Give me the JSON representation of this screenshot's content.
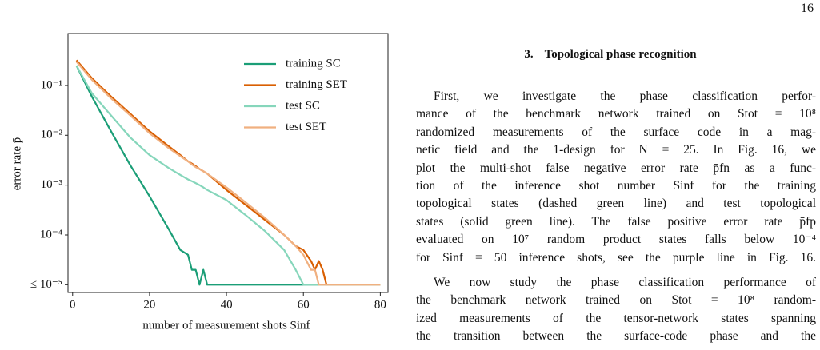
{
  "page_number": "16",
  "section": {
    "number": "3.",
    "title": "Topological phase recognition"
  },
  "paragraphs": [
    [
      "First, we investigate the phase classification perfor-",
      "mance of the benchmark network trained on Stot = 10⁸",
      "randomized measurements of the surface code in a mag-",
      "netic field and the 1-design for N = 25. In Fig. 16, we",
      "plot the multi-shot false negative error rate p̄fn as a func-",
      "tion of the inference shot number Sinf for the training",
      "topological states (dashed green line) and test topological",
      "states (solid green line). The false positive error rate p̄fp",
      "evaluated on 10⁷ random product states falls below 10⁻⁴",
      "for Sinf = 50 inference shots, see the purple line in Fig. 16."
    ],
    [
      "We now study the phase classification performance of",
      "the benchmark network trained on Stot = 10⁸ random-",
      "ized measurements of the tensor-network states spanning",
      "the transition between the surface-code phase and the"
    ]
  ],
  "chart_data": {
    "type": "line",
    "x_label": "number of measurement shots Sinf",
    "y_label": "error rate p̄",
    "x": [
      1,
      5,
      10,
      15,
      20,
      25,
      28,
      30,
      31,
      32,
      33,
      34,
      35,
      40,
      45,
      50,
      55,
      58,
      60,
      62,
      63,
      64,
      65,
      66,
      70,
      80
    ],
    "xlim": [
      -1.2,
      82
    ],
    "xticks": [
      0,
      20,
      40,
      60,
      80
    ],
    "ylim": [
      7e-06,
      1.1
    ],
    "log_y": true,
    "yticks": [
      {
        "value": 0.1,
        "label": "10⁻¹"
      },
      {
        "value": 0.01,
        "label": "10⁻²"
      },
      {
        "value": 0.001,
        "label": "10⁻³"
      },
      {
        "value": 0.0001,
        "label": "10⁻⁴"
      },
      {
        "value": 1e-05,
        "label": "≤ 10⁻⁵"
      }
    ],
    "legend": "upper right",
    "series": [
      {
        "name": "training SC",
        "color": "#1b9e77",
        "values": [
          0.25,
          0.06,
          0.012,
          0.0025,
          0.0006,
          0.00013,
          5e-05,
          4e-05,
          2e-05,
          2e-05,
          1e-05,
          2e-05,
          1e-05,
          1e-05,
          1e-05,
          1e-05,
          1e-05,
          1e-05,
          1e-05,
          1e-05,
          1e-05,
          1e-05,
          1e-05,
          1e-05,
          1e-05,
          1e-05
        ]
      },
      {
        "name": "training SET",
        "color": "#d95f02",
        "values": [
          0.32,
          0.14,
          0.06,
          0.027,
          0.012,
          0.006,
          0.004,
          0.003,
          0.0027,
          0.0024,
          0.0021,
          0.0019,
          0.0017,
          0.0008,
          0.0004,
          0.0002,
          0.0001,
          6e-05,
          5e-05,
          3e-05,
          2e-05,
          3e-05,
          2e-05,
          1e-05,
          1e-05,
          1e-05
        ]
      },
      {
        "name": "test SC",
        "color": "#86d6bb",
        "values": [
          0.25,
          0.07,
          0.025,
          0.009,
          0.004,
          0.0022,
          0.0016,
          0.0013,
          0.0012,
          0.0011,
          0.001,
          0.0009,
          0.0008,
          0.0005,
          0.00025,
          0.00012,
          5e-05,
          2e-05,
          1e-05,
          1e-05,
          1e-05,
          1e-05,
          1e-05,
          1e-05,
          1e-05,
          1e-05
        ]
      },
      {
        "name": "test SET",
        "color": "#f0b080",
        "values": [
          0.3,
          0.13,
          0.055,
          0.025,
          0.011,
          0.0055,
          0.0038,
          0.003,
          0.0026,
          0.0023,
          0.0021,
          0.0019,
          0.0017,
          0.0009,
          0.00045,
          0.00022,
          0.0001,
          6e-05,
          4e-05,
          2e-05,
          2e-05,
          1e-05,
          1e-05,
          1e-05,
          1e-05,
          1e-05
        ]
      }
    ]
  }
}
